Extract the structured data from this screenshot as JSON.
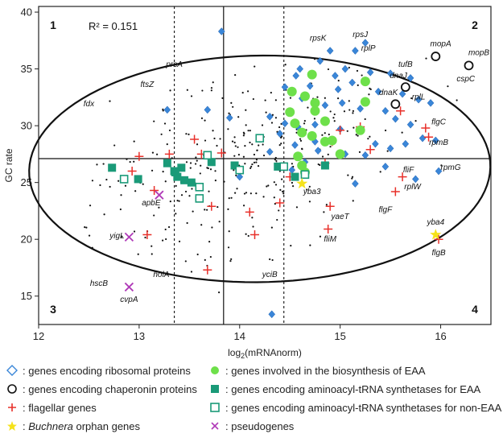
{
  "chart_data": {
    "type": "scatter",
    "xlabel_main": "log",
    "xlabel_sub": "2",
    "xlabel_rest": "(mRNAnorm)",
    "ylabel": "GC rate",
    "xlim": [
      12,
      16.5
    ],
    "ylim": [
      12.5,
      40.5
    ],
    "xticks": [
      12,
      13,
      14,
      15,
      16
    ],
    "yticks": [
      15,
      20,
      25,
      30,
      35,
      40
    ],
    "grid": false,
    "annotation_r2": "R² = 0.151",
    "quadrants": [
      "1",
      "2",
      "3",
      "4"
    ],
    "reference_lines": {
      "vertical_solid": 13.84,
      "vertical_dashed": [
        13.35,
        14.44
      ],
      "horizontal_solid": 27.1
    },
    "ellipse": {
      "cx": 14.2,
      "cy": 26.2,
      "rx": 2.3,
      "ry": 9.95,
      "angle_deg": 12
    },
    "series": [
      {
        "name": "genes encoding ribosomal proteins",
        "marker": "diamond",
        "color": "#3a86d8",
        "points": [
          [
            13.82,
            38.3
          ],
          [
            14.56,
            34.4
          ],
          [
            14.6,
            35.0
          ],
          [
            14.8,
            35.7
          ],
          [
            14.9,
            36.6
          ],
          [
            15.15,
            36.6
          ],
          [
            15.25,
            37.3
          ],
          [
            15.05,
            35.0
          ],
          [
            14.95,
            34.4
          ],
          [
            15.3,
            34.7
          ],
          [
            15.5,
            34.6
          ],
          [
            15.7,
            34.2
          ],
          [
            14.45,
            33.4
          ],
          [
            14.7,
            33.5
          ],
          [
            14.98,
            33.2
          ],
          [
            15.12,
            33.8
          ],
          [
            15.38,
            33.0
          ],
          [
            15.62,
            32.8
          ],
          [
            15.78,
            32.3
          ],
          [
            15.9,
            32.0
          ],
          [
            14.62,
            32.4
          ],
          [
            14.85,
            31.8
          ],
          [
            15.02,
            32.0
          ],
          [
            15.2,
            31.5
          ],
          [
            15.45,
            31.3
          ],
          [
            15.55,
            30.6
          ],
          [
            15.7,
            30.1
          ],
          [
            15.82,
            28.9
          ],
          [
            15.65,
            28.4
          ],
          [
            15.95,
            28.7
          ],
          [
            14.3,
            30.8
          ],
          [
            14.45,
            30.2
          ],
          [
            14.58,
            29.9
          ],
          [
            14.75,
            30.1
          ],
          [
            15.0,
            29.7
          ],
          [
            14.4,
            29.3
          ],
          [
            14.55,
            28.3
          ],
          [
            14.75,
            28.6
          ],
          [
            15.35,
            28.4
          ],
          [
            15.5,
            28.0
          ],
          [
            13.9,
            30.7
          ],
          [
            14.3,
            27.7
          ],
          [
            14.6,
            27.3
          ],
          [
            14.78,
            27.8
          ],
          [
            15.05,
            27.5
          ],
          [
            15.25,
            27.4
          ],
          [
            15.45,
            26.4
          ],
          [
            15.15,
            24.9
          ],
          [
            15.75,
            25.3
          ],
          [
            15.98,
            26.0
          ],
          [
            14.0,
            25.5
          ],
          [
            14.65,
            26.8
          ],
          [
            14.52,
            26.1
          ],
          [
            14.32,
            13.4
          ],
          [
            13.28,
            31.4
          ],
          [
            13.68,
            31.4
          ]
        ]
      },
      {
        "name": "genes encoding chaperonin proteins",
        "marker": "circle-open",
        "color": "#111111",
        "points": [
          [
            15.95,
            36.1
          ],
          [
            16.28,
            35.3
          ],
          [
            15.65,
            33.4
          ],
          [
            15.55,
            31.9
          ]
        ]
      },
      {
        "name": "flagellar genes",
        "marker": "plus",
        "color": "#e8302a",
        "points": [
          [
            12.93,
            26.0
          ],
          [
            13.0,
            27.3
          ],
          [
            13.15,
            24.3
          ],
          [
            13.08,
            20.4
          ],
          [
            13.3,
            27.5
          ],
          [
            13.55,
            28.8
          ],
          [
            13.62,
            27.5
          ],
          [
            13.72,
            22.9
          ],
          [
            13.82,
            27.6
          ],
          [
            13.68,
            17.3
          ],
          [
            14.15,
            20.4
          ],
          [
            14.1,
            22.4
          ],
          [
            14.4,
            23.2
          ],
          [
            14.5,
            25.5
          ],
          [
            14.85,
            26.7
          ],
          [
            14.92,
            28.6
          ],
          [
            15.0,
            29.6
          ],
          [
            14.9,
            22.9
          ],
          [
            14.88,
            20.9
          ],
          [
            15.3,
            27.9
          ],
          [
            15.6,
            31.3
          ],
          [
            15.62,
            25.5
          ],
          [
            15.55,
            24.2
          ],
          [
            15.85,
            29.8
          ],
          [
            15.88,
            29.0
          ],
          [
            15.98,
            20.0
          ],
          [
            15.2,
            29.9
          ]
        ]
      },
      {
        "name": "genes involved in the biosynthesis of EAA",
        "marker": "circle-filled",
        "color": "#6ee04a",
        "points": [
          [
            14.72,
            34.5
          ],
          [
            14.52,
            33.0
          ],
          [
            14.65,
            32.6
          ],
          [
            14.75,
            31.3
          ],
          [
            14.85,
            30.4
          ],
          [
            14.55,
            30.2
          ],
          [
            14.62,
            29.4
          ],
          [
            14.72,
            29.1
          ],
          [
            14.92,
            28.7
          ],
          [
            14.85,
            28.6
          ],
          [
            15.0,
            27.5
          ],
          [
            15.2,
            29.6
          ],
          [
            15.25,
            32.1
          ],
          [
            15.25,
            33.9
          ],
          [
            14.58,
            27.3
          ],
          [
            14.62,
            26.5
          ],
          [
            14.65,
            25.9
          ],
          [
            14.5,
            31.2
          ],
          [
            14.75,
            32.0
          ]
        ]
      },
      {
        "name": "genes encoding aminoacyl-tRNA synthetases for EAA",
        "marker": "square-filled",
        "color": "#1a9a78",
        "points": [
          [
            12.73,
            26.3
          ],
          [
            12.99,
            25.3
          ],
          [
            13.28,
            26.7
          ],
          [
            13.35,
            26.0
          ],
          [
            13.38,
            25.5
          ],
          [
            13.45,
            25.2
          ],
          [
            13.52,
            25.0
          ],
          [
            13.36,
            25.9
          ],
          [
            13.42,
            26.3
          ],
          [
            13.72,
            26.8
          ],
          [
            13.95,
            26.5
          ],
          [
            14.38,
            26.4
          ],
          [
            14.55,
            25.5
          ],
          [
            14.85,
            26.5
          ]
        ]
      },
      {
        "name": "genes encoding aminoacyl-tRNA synthetases for non-EAA",
        "marker": "square-open",
        "color": "#1a9a78",
        "points": [
          [
            12.85,
            25.3
          ],
          [
            13.6,
            24.6
          ],
          [
            13.6,
            23.6
          ],
          [
            13.68,
            27.4
          ],
          [
            14.0,
            26.1
          ],
          [
            14.2,
            28.9
          ],
          [
            14.44,
            26.4
          ],
          [
            14.65,
            25.7
          ]
        ]
      },
      {
        "name": "Buchnera orphan genes",
        "marker": "star",
        "color": "#f5e21a",
        "points": [
          [
            14.62,
            24.9
          ],
          [
            15.95,
            20.4
          ]
        ]
      },
      {
        "name": "pseudogenes",
        "marker": "x",
        "color": "#b03ab8",
        "points": [
          [
            13.2,
            23.9
          ],
          [
            12.9,
            20.2
          ],
          [
            12.9,
            15.8
          ]
        ]
      }
    ],
    "small_points": {
      "color": "#111111",
      "count": 320
    },
    "gene_labels": [
      {
        "text": "ftsZ",
        "x": 13.08,
        "y": 33.4
      },
      {
        "text": "prsA",
        "x": 13.35,
        "y": 35.2
      },
      {
        "text": "fdx",
        "x": 12.5,
        "y": 31.7
      },
      {
        "text": "rpsK",
        "x": 14.78,
        "y": 37.5
      },
      {
        "text": "rpsJ",
        "x": 15.2,
        "y": 37.8
      },
      {
        "text": "rplP",
        "x": 15.28,
        "y": 36.6
      },
      {
        "text": "mopA",
        "x": 16.0,
        "y": 37.0
      },
      {
        "text": "mopB",
        "x": 16.38,
        "y": 36.2
      },
      {
        "text": "tufB",
        "x": 15.65,
        "y": 35.2
      },
      {
        "text": "dnaJ",
        "x": 15.58,
        "y": 34.2
      },
      {
        "text": "dnaK",
        "x": 15.48,
        "y": 32.7
      },
      {
        "text": "cspC",
        "x": 16.25,
        "y": 33.9
      },
      {
        "text": "rplL",
        "x": 15.78,
        "y": 32.3
      },
      {
        "text": "flgC",
        "x": 15.98,
        "y": 30.1
      },
      {
        "text": "rpmB",
        "x": 15.98,
        "y": 28.3
      },
      {
        "text": "rpmG",
        "x": 16.1,
        "y": 26.1
      },
      {
        "text": "fliF",
        "x": 15.68,
        "y": 25.9
      },
      {
        "text": "rplW",
        "x": 15.72,
        "y": 24.4
      },
      {
        "text": "flgF",
        "x": 15.45,
        "y": 22.4
      },
      {
        "text": "yba4",
        "x": 15.95,
        "y": 21.3
      },
      {
        "text": "flgB",
        "x": 15.98,
        "y": 18.6
      },
      {
        "text": "yba3",
        "x": 14.72,
        "y": 24.0
      },
      {
        "text": "yaeT",
        "x": 15.0,
        "y": 21.8
      },
      {
        "text": "fliM",
        "x": 14.9,
        "y": 19.8
      },
      {
        "text": "yciB",
        "x": 14.3,
        "y": 16.7
      },
      {
        "text": "apbE",
        "x": 13.12,
        "y": 23.0
      },
      {
        "text": "yigL",
        "x": 12.78,
        "y": 20.1
      },
      {
        "text": "holA",
        "x": 13.22,
        "y": 16.7
      },
      {
        "text": "hscB",
        "x": 12.6,
        "y": 15.9
      },
      {
        "text": "cvpA",
        "x": 12.9,
        "y": 14.5
      }
    ]
  },
  "legend": [
    {
      "symbol": "diamond-open",
      "color": "#3a86d8",
      "text": ": genes encoding ribosomal proteins"
    },
    {
      "symbol": "circle-filled",
      "color": "#6ee04a",
      "text": ": genes involved in the biosynthesis of EAA"
    },
    {
      "symbol": "circle-open",
      "color": "#111111",
      "text": ": genes encoding chaperonin proteins"
    },
    {
      "symbol": "square-filled",
      "color": "#1a9a78",
      "text": ": genes encoding aminoacyl-tRNA synthetases for EAA"
    },
    {
      "symbol": "plus",
      "color": "#e8302a",
      "text": ": flagellar genes"
    },
    {
      "symbol": "square-open",
      "color": "#1a9a78",
      "text": ": genes encoding aminoacyl-tRNA synthetases for non-EAA"
    },
    {
      "symbol": "star",
      "color": "#f5e21a",
      "text_italic": "Buchnera",
      "text": " orphan genes",
      "text_prefix": ": "
    },
    {
      "symbol": "x",
      "color": "#b03ab8",
      "text": ": pseudogenes"
    }
  ]
}
